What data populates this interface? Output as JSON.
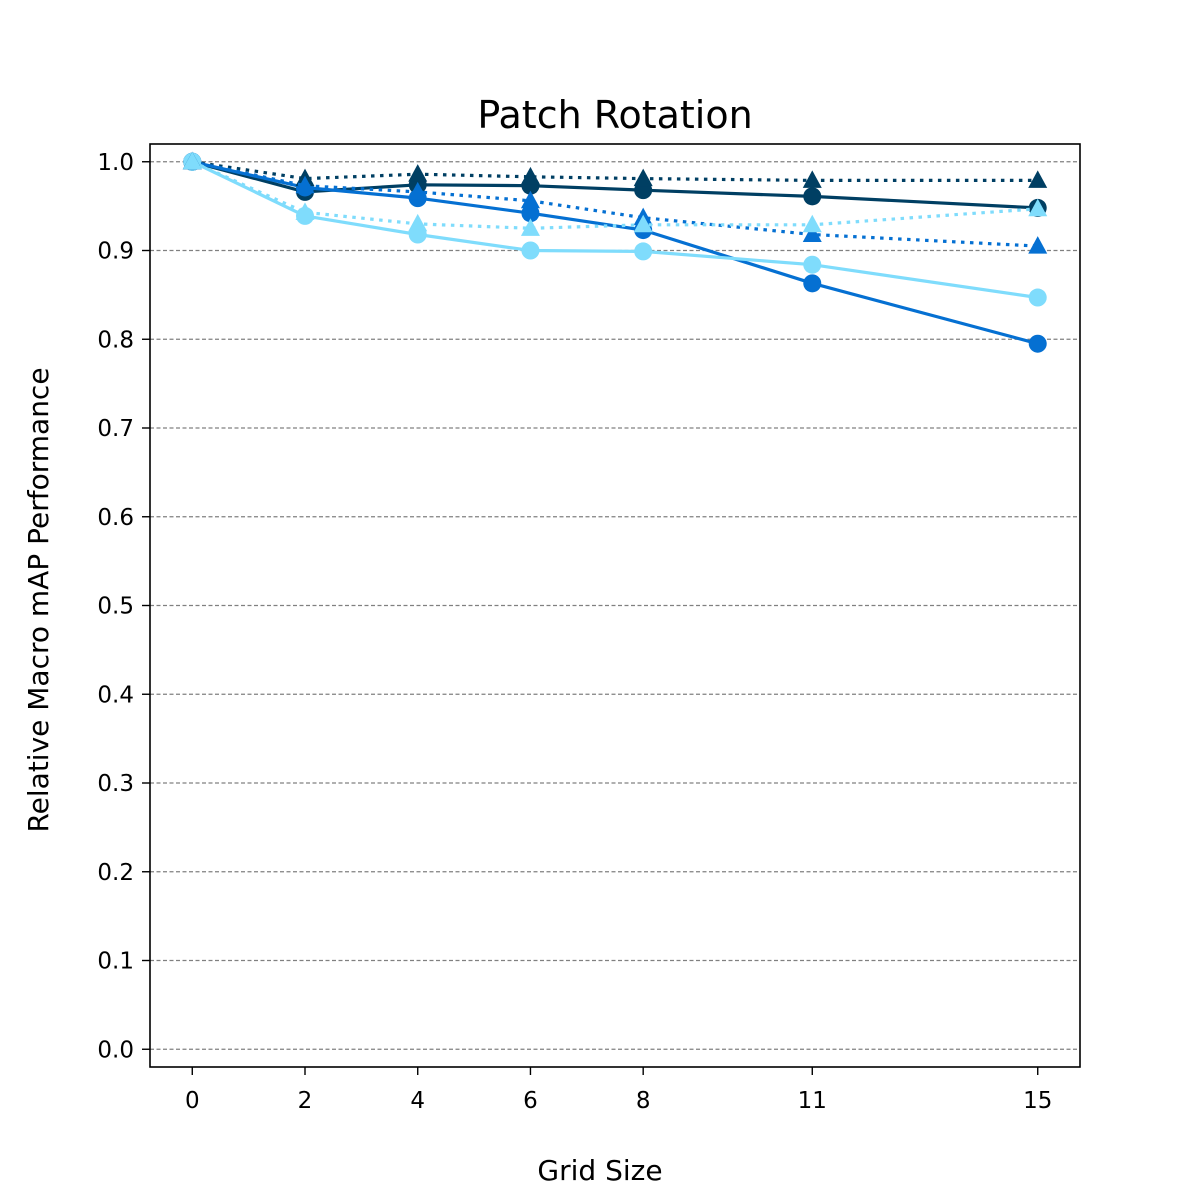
{
  "chart_data": {
    "type": "line",
    "title": "Patch Rotation",
    "xlabel": "Grid Size",
    "ylabel": "Relative Macro mAP Performance",
    "x": [
      0,
      2,
      4,
      6,
      8,
      11,
      15
    ],
    "x_ticks": [
      "0",
      "2",
      "4",
      "6",
      "8",
      "11",
      "15"
    ],
    "y_ticks": [
      "0.0",
      "0.1",
      "0.2",
      "0.3",
      "0.4",
      "0.5",
      "0.6",
      "0.7",
      "0.8",
      "0.9",
      "1.0"
    ],
    "ylim": [
      -0.02,
      1.02
    ],
    "grid": "horizontal dashed",
    "series": [
      {
        "color": "#003f63",
        "linestyle": "solid",
        "marker": "circle",
        "values": [
          1.0,
          0.966,
          0.974,
          0.973,
          0.968,
          0.961,
          0.948
        ]
      },
      {
        "color": "#0570d2",
        "linestyle": "solid",
        "marker": "circle",
        "values": [
          1.0,
          0.971,
          0.959,
          0.942,
          0.923,
          0.863,
          0.795
        ]
      },
      {
        "color": "#7fdcfc",
        "linestyle": "solid",
        "marker": "circle",
        "values": [
          1.0,
          0.939,
          0.918,
          0.9,
          0.899,
          0.884,
          0.847
        ]
      },
      {
        "color": "#003f63",
        "linestyle": "dotted",
        "marker": "triangle",
        "values": [
          1.0,
          0.981,
          0.986,
          0.983,
          0.981,
          0.979,
          0.979
        ]
      },
      {
        "color": "#0570d2",
        "linestyle": "dotted",
        "marker": "triangle",
        "values": [
          1.0,
          0.973,
          0.966,
          0.956,
          0.937,
          0.918,
          0.905
        ]
      },
      {
        "color": "#7fdcfc",
        "linestyle": "dotted",
        "marker": "triangle",
        "values": [
          1.0,
          0.943,
          0.93,
          0.925,
          0.929,
          0.929,
          0.947
        ]
      }
    ]
  }
}
